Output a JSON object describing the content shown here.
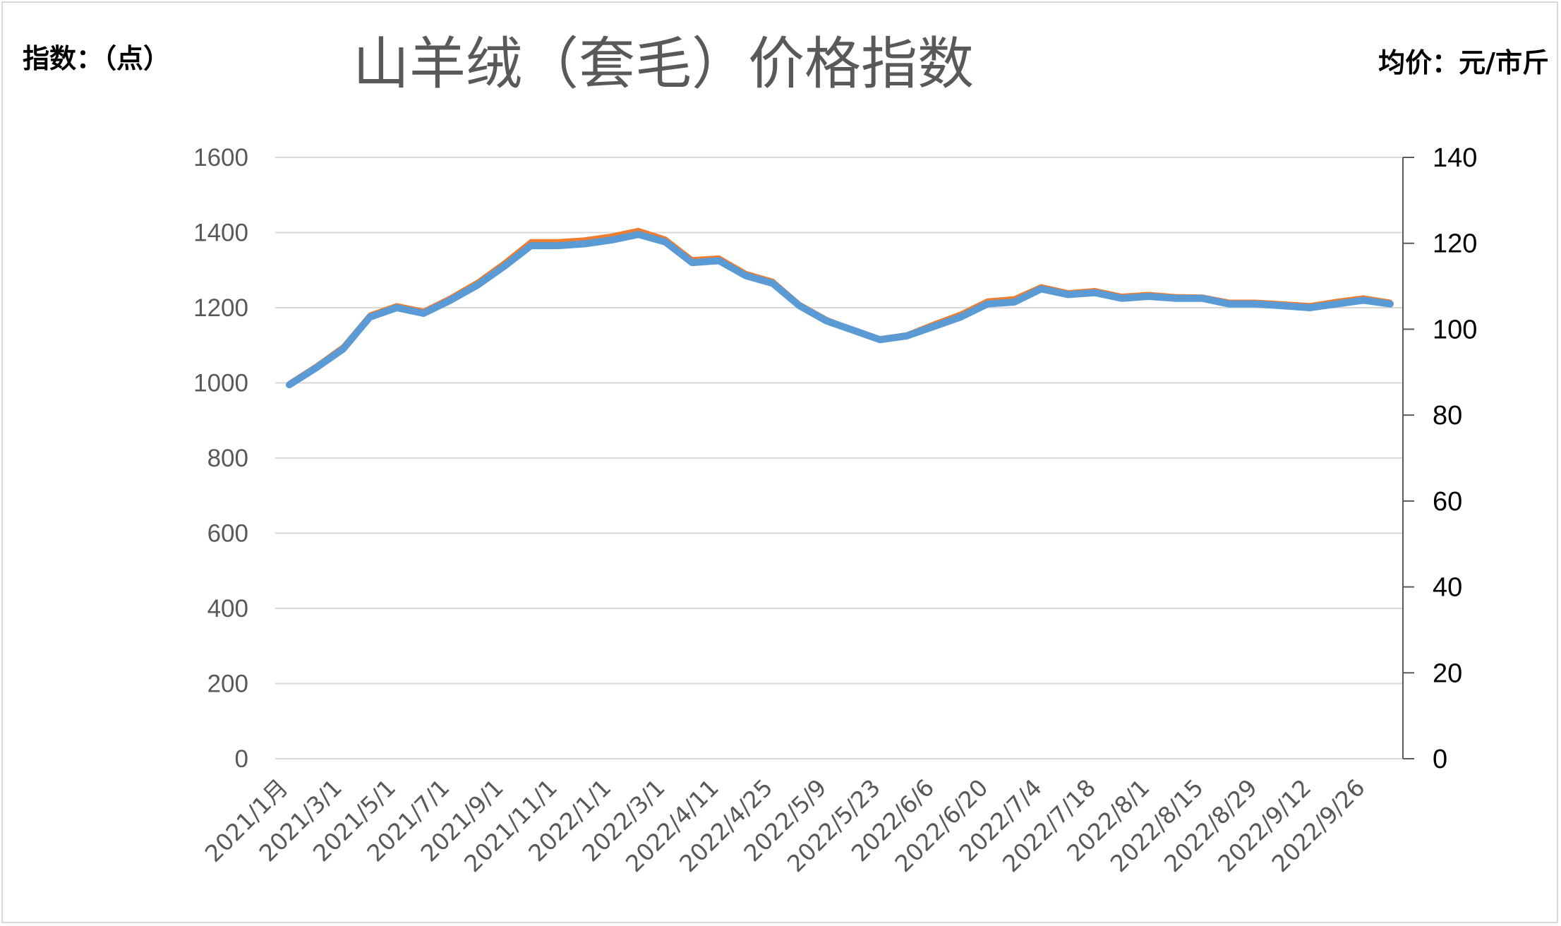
{
  "chart_data": {
    "type": "line",
    "title": "山羊绒（套毛）价格指数",
    "ylabel_left": "指数：（点）",
    "ylabel_right": "均价：元/市斤",
    "ylim_left": [
      0,
      1600
    ],
    "ylim_right": [
      0,
      140
    ],
    "yticks_left": [
      0,
      200,
      400,
      600,
      800,
      1000,
      1200,
      1400,
      1600
    ],
    "yticks_right": [
      0,
      20,
      40,
      60,
      80,
      100,
      120,
      140
    ],
    "grid": true,
    "x_tick_labels": [
      "2021/1月",
      "2021/3/1",
      "2021/5/1",
      "2021/7/1",
      "2021/9/1",
      "2021/11/1",
      "2022/1/1",
      "2022/3/1",
      "2022/4/11",
      "2022/4/25",
      "2022/5/9",
      "2022/5/23",
      "2022/6/6",
      "2022/6/20",
      "2022/7/4",
      "2022/7/18",
      "2022/8/1",
      "2022/8/15",
      "2022/8/29",
      "2022/9/12",
      "2022/9/26"
    ],
    "series": [
      {
        "axis": "left",
        "color": "#5b9bd5",
        "values": [
          995,
          1040,
          1090,
          1175,
          1200,
          1185,
          1220,
          1260,
          1310,
          1365,
          1365,
          1370,
          1380,
          1395,
          1375,
          1320,
          1325,
          1285,
          1265,
          1205,
          1165,
          1140,
          1115,
          1125,
          1150,
          1175,
          1210,
          1215,
          1250,
          1235,
          1240,
          1225,
          1230,
          1225,
          1225,
          1210,
          1210,
          1205,
          1200,
          1210,
          1220,
          1210
        ]
      },
      {
        "axis": "right",
        "color": "#ed7d31",
        "values": [
          87.5,
          91.5,
          96.0,
          103.4,
          105.6,
          104.3,
          107.4,
          111.0,
          115.5,
          120.5,
          120.5,
          120.9,
          121.8,
          123.1,
          121.1,
          116.3,
          116.7,
          113.1,
          111.3,
          105.9,
          102.4,
          99.9,
          97.9,
          98.8,
          101.3,
          103.6,
          106.7,
          107.2,
          110.0,
          108.6,
          109.1,
          107.8,
          108.2,
          107.7,
          107.6,
          106.4,
          106.4,
          106.0,
          105.6,
          106.6,
          107.4,
          106.4
        ]
      }
    ]
  }
}
